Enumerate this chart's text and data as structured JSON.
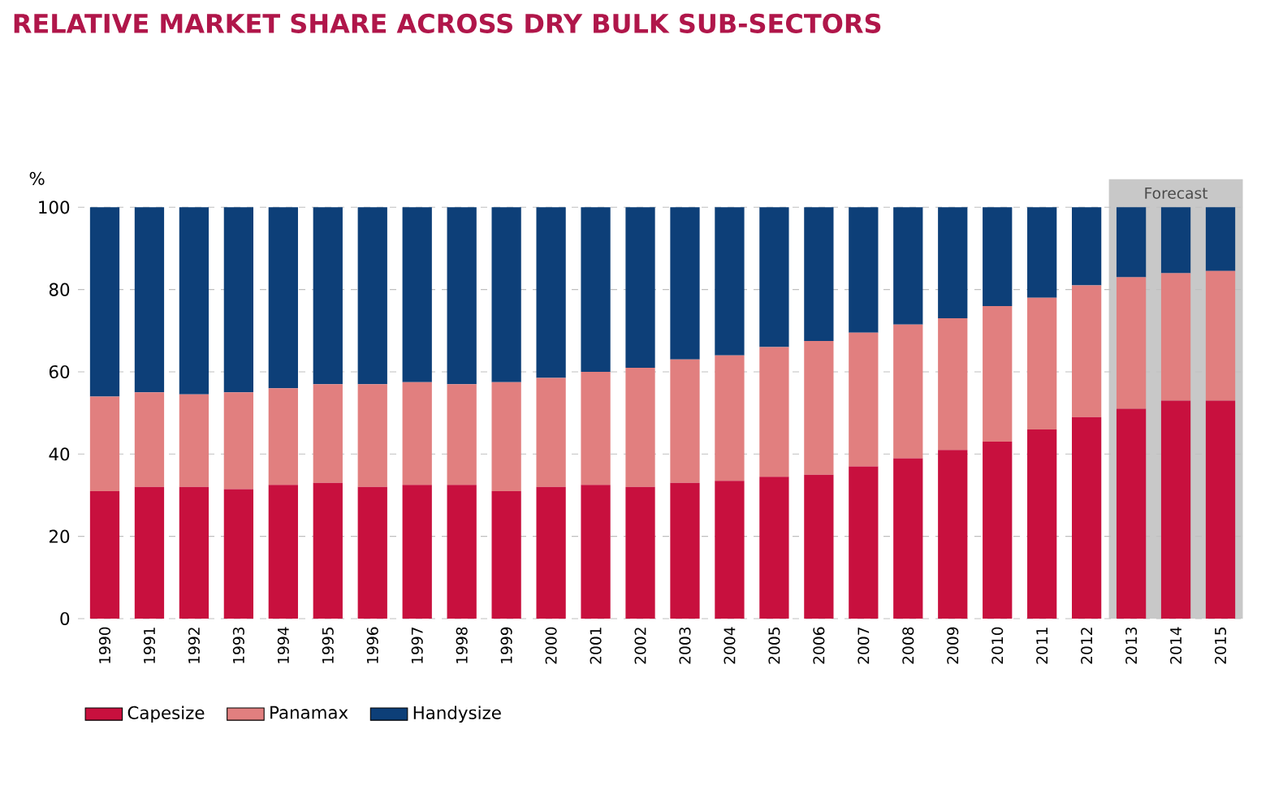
{
  "chart_data": {
    "type": "bar",
    "title": "RELATIVE MARKET SHARE ACROSS DRY BULK SUB-SECTORS",
    "ylabel": "%",
    "stacked": true,
    "categories": [
      "1990",
      "1991",
      "1992",
      "1993",
      "1994",
      "1995",
      "1996",
      "1997",
      "1998",
      "1999",
      "2000",
      "2001",
      "2002",
      "2003",
      "2004",
      "2005",
      "2006",
      "2007",
      "2008",
      "2009",
      "2010",
      "2011",
      "2012",
      "2013",
      "2014",
      "2015"
    ],
    "series": [
      {
        "name": "Capesize",
        "color": "#c8103e",
        "values": [
          31,
          32,
          32,
          31.5,
          32.5,
          33,
          32,
          32.5,
          32.5,
          31,
          32,
          32.5,
          32,
          33,
          33.5,
          34.5,
          35,
          37,
          39,
          41,
          43,
          46,
          49,
          51,
          53,
          53
        ]
      },
      {
        "name": "Panamax",
        "color": "#e17f7f",
        "values": [
          23,
          23,
          22.5,
          23.5,
          23.5,
          24,
          25,
          25,
          24.5,
          26.5,
          26.5,
          27.5,
          29,
          30,
          30.5,
          31.5,
          32.5,
          32.5,
          32.5,
          32,
          33,
          32,
          32,
          32,
          31,
          31.5
        ]
      },
      {
        "name": "Handysize",
        "color": "#0d3f78",
        "values": [
          46,
          45,
          45.5,
          45,
          44,
          43,
          43,
          42.5,
          43,
          42.5,
          41.5,
          40,
          39,
          37,
          36,
          34,
          32.5,
          30.5,
          28.5,
          27,
          24,
          22,
          19,
          17,
          16,
          15.5
        ]
      }
    ],
    "ylim": [
      0,
      100
    ],
    "yticks": [
      0,
      20,
      40,
      60,
      80,
      100
    ],
    "grid": "y",
    "legend": "bottom left",
    "bands": [
      {
        "axis": "x",
        "from": "2013",
        "to": "2015",
        "label": "Forecast",
        "color": "#c8c8c8"
      }
    ]
  }
}
